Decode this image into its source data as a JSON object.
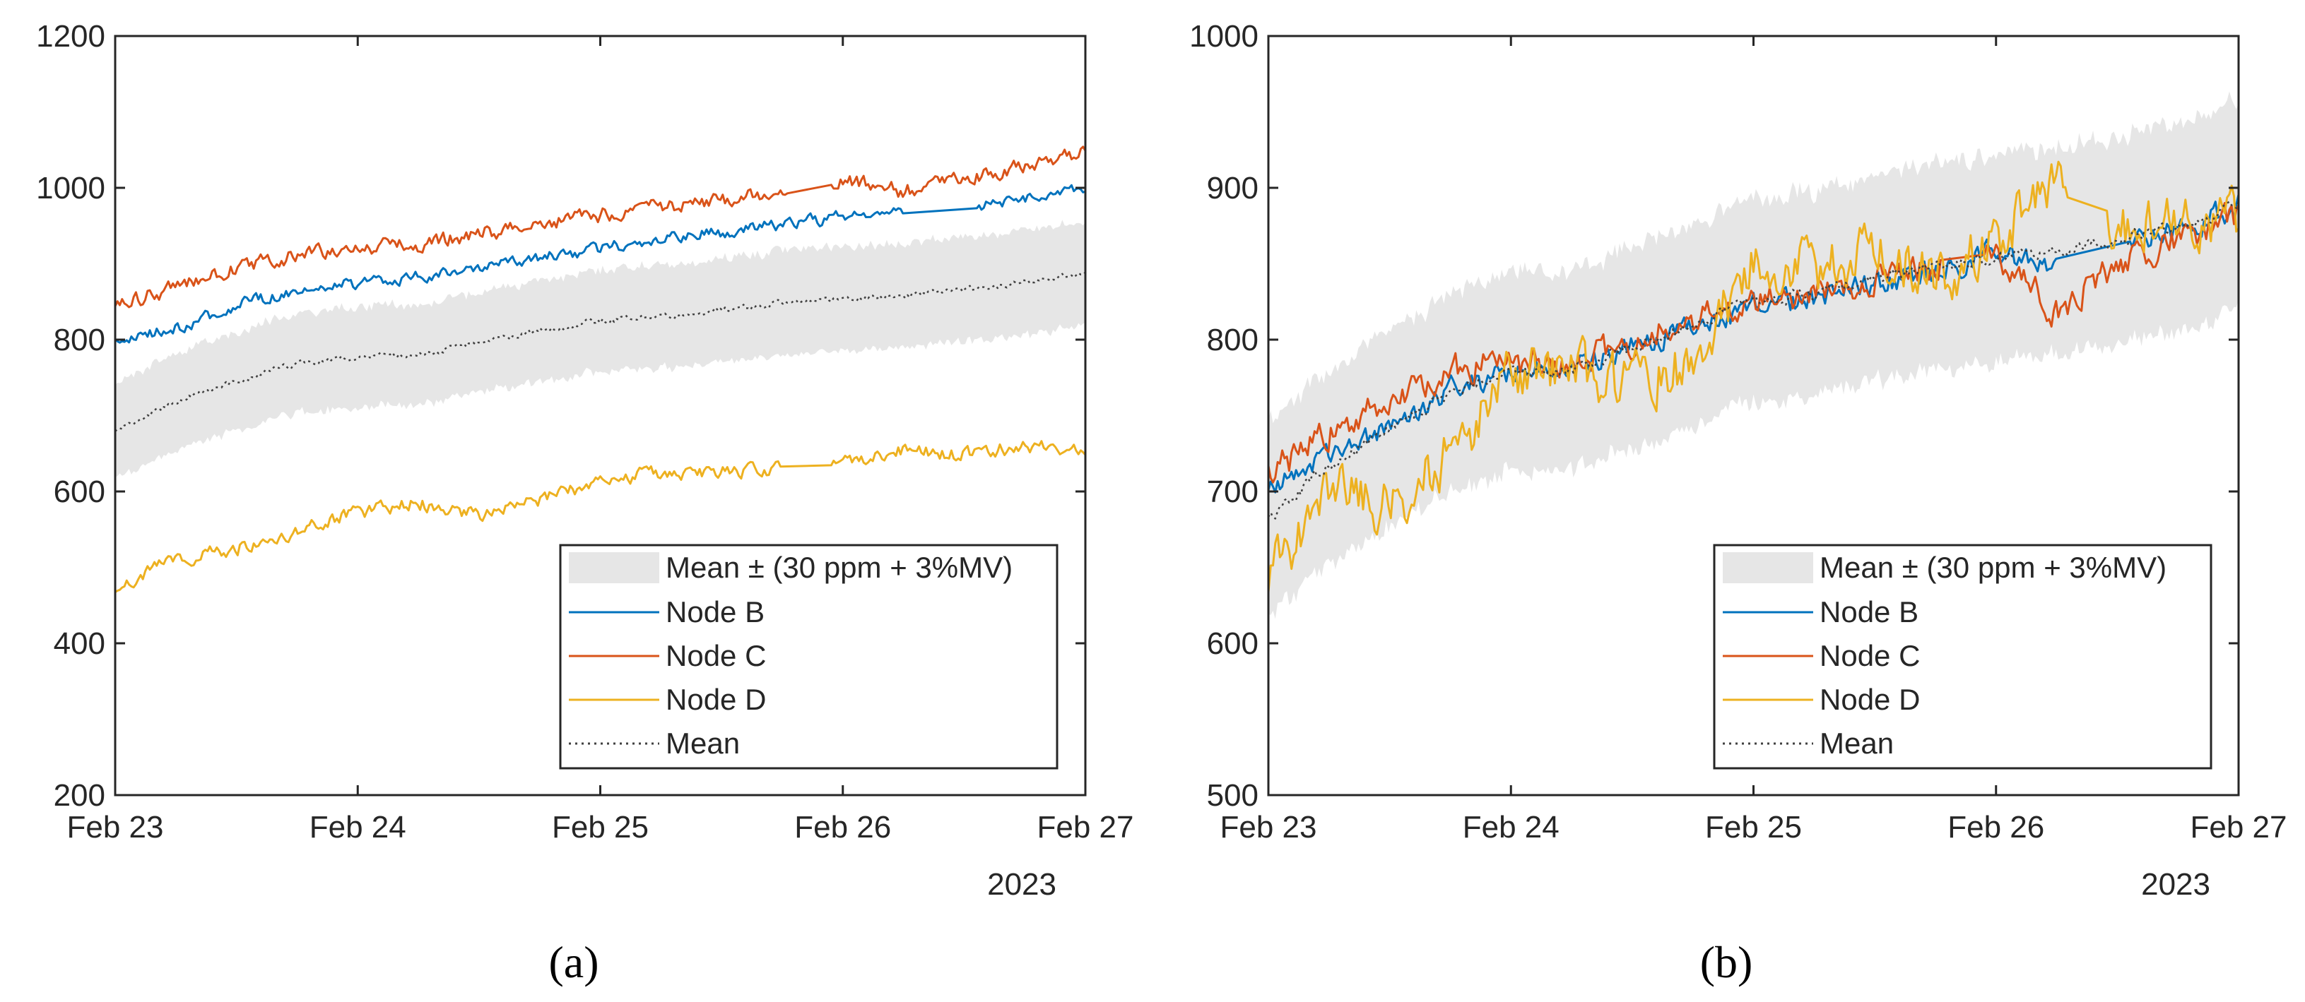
{
  "figure": {
    "panels": [
      {
        "caption": "(a)"
      },
      {
        "caption": "(b)"
      }
    ]
  },
  "chart_data": [
    {
      "type": "line",
      "panel": "(a)",
      "title": "",
      "xlabel": "",
      "ylabel": "",
      "x_tick_labels": [
        "Feb 23",
        "Feb 24",
        "Feb 25",
        "Feb 26",
        "Feb 27"
      ],
      "x_year_label": "2023",
      "x_range_days": [
        0,
        4
      ],
      "ylim": [
        200,
        1200
      ],
      "y_ticks": [
        200,
        400,
        600,
        800,
        1000,
        1200
      ],
      "legend_position": "bottom-right",
      "band": {
        "name": "Mean ± (30 ppm + 3%MV)",
        "color": "#e6e6e6",
        "offset_ppm": 30,
        "relative_pct": 3
      },
      "series": [
        {
          "name": "Node B",
          "color": "#0072BD",
          "style": "solid",
          "gap_days": [
            3.25,
            3.55
          ],
          "x_days": [
            0,
            0.25,
            0.5,
            0.75,
            1,
            1.25,
            1.5,
            1.75,
            2,
            2.25,
            2.5,
            2.75,
            3,
            3.25,
            3.5,
            3.75,
            4
          ],
          "values": [
            795,
            815,
            845,
            865,
            875,
            882,
            893,
            908,
            920,
            932,
            942,
            952,
            962,
            970,
            976,
            985,
            1000
          ],
          "noise": 8
        },
        {
          "name": "Node C",
          "color": "#D95319",
          "style": "solid",
          "gap_days": [
            2.78,
            2.95
          ],
          "x_days": [
            0,
            0.25,
            0.5,
            0.75,
            1,
            1.25,
            1.5,
            1.75,
            2,
            2.25,
            2.5,
            2.75,
            3,
            3.25,
            3.5,
            3.75,
            4
          ],
          "values": [
            845,
            868,
            895,
            912,
            920,
            925,
            940,
            952,
            965,
            975,
            985,
            995,
            1012,
            995,
            1010,
            1030,
            1045
          ],
          "noise": 10
        },
        {
          "name": "Node D",
          "color": "#EDB120",
          "style": "solid",
          "gap_days": [
            2.75,
            2.95
          ],
          "x_days": [
            0,
            0.25,
            0.5,
            0.75,
            1,
            1.25,
            1.5,
            1.75,
            2,
            2.25,
            2.5,
            2.75,
            3,
            3.25,
            3.5,
            3.75,
            4
          ],
          "values": [
            475,
            510,
            525,
            548,
            572,
            585,
            570,
            588,
            615,
            625,
            625,
            630,
            640,
            655,
            648,
            660,
            658
          ],
          "noise": 9
        },
        {
          "name": "Mean",
          "color": "#404040",
          "style": "dotted",
          "gap_days": null,
          "x_days": [
            0,
            0.25,
            0.5,
            0.75,
            1,
            1.25,
            1.5,
            1.75,
            2,
            2.25,
            2.5,
            2.75,
            3,
            3.25,
            3.5,
            3.75,
            4
          ],
          "values": [
            680,
            718,
            745,
            768,
            778,
            780,
            795,
            812,
            825,
            830,
            840,
            848,
            855,
            858,
            865,
            875,
            888
          ],
          "noise": 4
        }
      ]
    },
    {
      "type": "line",
      "panel": "(b)",
      "title": "",
      "xlabel": "",
      "ylabel": "",
      "x_tick_labels": [
        "Feb 23",
        "Feb 24",
        "Feb 25",
        "Feb 26",
        "Feb 27"
      ],
      "x_year_label": "2023",
      "x_range_days": [
        0,
        4
      ],
      "ylim": [
        500,
        1000
      ],
      "y_ticks": [
        500,
        600,
        700,
        800,
        900,
        1000
      ],
      "legend_position": "bottom-right",
      "band": {
        "name": "Mean ± (30 ppm + 3%MV)",
        "color": "#e6e6e6",
        "offset_ppm": 30,
        "relative_pct": 3
      },
      "series": [
        {
          "name": "Node B",
          "color": "#0072BD",
          "style": "solid",
          "gap_days": [
            3.25,
            3.55
          ],
          "x_days": [
            0,
            0.25,
            0.5,
            0.75,
            1,
            1.25,
            1.5,
            1.75,
            2,
            2.25,
            2.5,
            2.75,
            3,
            3.25,
            3.5,
            3.75,
            4
          ],
          "values": [
            700,
            722,
            745,
            768,
            778,
            780,
            795,
            808,
            822,
            828,
            838,
            845,
            858,
            848,
            862,
            872,
            888
          ],
          "noise": 8
        },
        {
          "name": "Node C",
          "color": "#D95319",
          "style": "solid",
          "gap_days": [
            2.78,
            2.95
          ],
          "x_days": [
            0,
            0.25,
            0.5,
            0.75,
            1,
            1.25,
            1.5,
            1.75,
            2,
            2.25,
            2.5,
            2.75,
            3,
            3.25,
            3.5,
            3.75,
            4
          ],
          "values": [
            712,
            738,
            760,
            780,
            785,
            782,
            800,
            812,
            825,
            832,
            840,
            848,
            855,
            818,
            850,
            865,
            882
          ],
          "noise": 10
        },
        {
          "name": "Node D",
          "color": "#EDB120",
          "style": "solid",
          "gap_days": [
            3.3,
            3.45
          ],
          "x_days": [
            0,
            0.25,
            0.5,
            0.75,
            1,
            1.25,
            1.5,
            1.75,
            2,
            2.25,
            2.5,
            2.75,
            3,
            3.25,
            3.5,
            3.75,
            4
          ],
          "values": [
            640,
            705,
            690,
            725,
            775,
            782,
            770,
            785,
            850,
            845,
            860,
            840,
            865,
            900,
            875,
            875,
            880
          ],
          "noise": 18
        },
        {
          "name": "Mean",
          "color": "#404040",
          "style": "dotted",
          "gap_days": null,
          "x_days": [
            0,
            0.25,
            0.5,
            0.75,
            1,
            1.25,
            1.5,
            1.75,
            2,
            2.25,
            2.5,
            2.75,
            3,
            3.25,
            3.5,
            3.75,
            4
          ],
          "values": [
            680,
            718,
            740,
            765,
            778,
            780,
            795,
            810,
            825,
            830,
            840,
            848,
            855,
            858,
            865,
            875,
            888
          ],
          "noise": 4
        }
      ]
    }
  ]
}
